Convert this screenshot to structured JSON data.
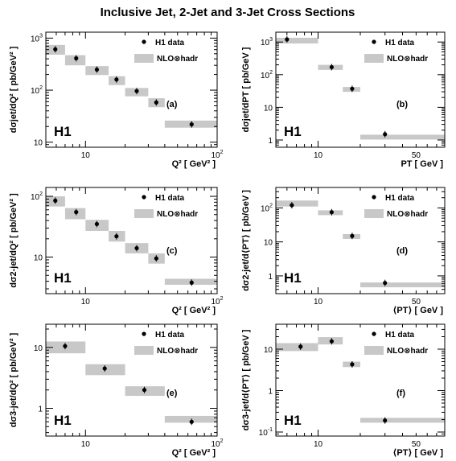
{
  "figure": {
    "title": "Inclusive Jet, 2-Jet and 3-Jet Cross Sections",
    "logo_text": "H1",
    "legend": {
      "data_label": "H1 data",
      "theory_label": "NLO⊗hadr"
    },
    "colors": {
      "theory_band": "#c8c8c8",
      "marker": "#000000",
      "axis": "#000000"
    }
  },
  "chart_data": [
    {
      "id": "a",
      "type": "scatter",
      "panel_label": "(a)",
      "xlabel": "Q² [ GeV² ]",
      "ylabel": "dσjet/dQ² [ pb/GeV² ]",
      "xscale": "log",
      "yscale": "log",
      "xlim": [
        5,
        100
      ],
      "ylim": [
        8,
        1300
      ],
      "xticks": [
        {
          "v": 10,
          "t": "10"
        },
        {
          "v": 100,
          "t": "10",
          "sup": "2"
        }
      ],
      "yticks": [
        {
          "v": 10,
          "t": "10"
        },
        {
          "v": 100,
          "t": "10",
          "sup": "2"
        },
        {
          "v": 1000,
          "t": "10",
          "sup": "3"
        }
      ],
      "has_legend": true,
      "series": [
        {
          "role": "data",
          "name": "H1 data",
          "x": [
            5.9,
            8.5,
            12.2,
            17.2,
            24.5,
            34.5,
            64
          ],
          "y": [
            610,
            410,
            248,
            160,
            96,
            58,
            22
          ]
        },
        {
          "role": "theory",
          "name": "NLO⊗hadr",
          "bins": [
            [
              5,
              7
            ],
            [
              7,
              10
            ],
            [
              10,
              15
            ],
            [
              15,
              20
            ],
            [
              20,
              30
            ],
            [
              30,
              40
            ],
            [
              40,
              100
            ]
          ],
          "lo": [
            480,
            300,
            195,
            125,
            76,
            47,
            19
          ],
          "hi": [
            740,
            470,
            290,
            185,
            110,
            70,
            26
          ]
        }
      ]
    },
    {
      "id": "b",
      "type": "scatter",
      "panel_label": "(b)",
      "xlabel": "PT [ GeV ]",
      "ylabel": "dσjet/dPT [ pb/GeV ]",
      "xscale": "log",
      "yscale": "log",
      "xlim": [
        5,
        80
      ],
      "ylim": [
        0.6,
        2000
      ],
      "xticks": [
        {
          "v": 10,
          "t": "10"
        },
        {
          "v": 50,
          "t": "50"
        }
      ],
      "yticks": [
        {
          "v": 1,
          "t": "1"
        },
        {
          "v": 10,
          "t": "10"
        },
        {
          "v": 100,
          "t": "10",
          "sup": "2"
        },
        {
          "v": 1000,
          "t": "10",
          "sup": "3"
        }
      ],
      "has_legend": true,
      "series": [
        {
          "role": "data",
          "name": "H1 data",
          "x": [
            6,
            12.5,
            17.5,
            30
          ],
          "y": [
            1200,
            170,
            37,
            1.5
          ]
        },
        {
          "role": "theory",
          "name": "NLO⊗hadr",
          "bins": [
            [
              5,
              10
            ],
            [
              10,
              15
            ],
            [
              15,
              20
            ],
            [
              20,
              80
            ]
          ],
          "lo": [
            900,
            140,
            30,
            1.2
          ],
          "hi": [
            1350,
            200,
            42,
            1.45
          ]
        }
      ]
    },
    {
      "id": "c",
      "type": "scatter",
      "panel_label": "(c)",
      "xlabel": "Q² [ GeV² ]",
      "ylabel": "dσ2-jet/dQ² [ pb/GeV² ]",
      "xscale": "log",
      "yscale": "log",
      "xlim": [
        5,
        100
      ],
      "ylim": [
        2.5,
        140
      ],
      "xticks": [
        {
          "v": 10,
          "t": "10"
        },
        {
          "v": 100,
          "t": "10",
          "sup": "2"
        }
      ],
      "yticks": [
        {
          "v": 10,
          "t": "10"
        },
        {
          "v": 100,
          "t": "10",
          "sup": "2"
        }
      ],
      "has_legend": true,
      "series": [
        {
          "role": "data",
          "name": "H1 data",
          "x": [
            5.9,
            8.5,
            12.2,
            17.2,
            24.5,
            34.5,
            64
          ],
          "y": [
            85,
            55,
            35,
            22,
            14,
            9.5,
            3.8
          ]
        },
        {
          "role": "theory",
          "name": "NLO⊗hadr",
          "bins": [
            [
              5,
              7
            ],
            [
              7,
              10
            ],
            [
              10,
              15
            ],
            [
              15,
              20
            ],
            [
              20,
              30
            ],
            [
              30,
              40
            ],
            [
              40,
              100
            ]
          ],
          "lo": [
            68,
            42,
            27,
            18,
            11.5,
            7.8,
            3.5
          ],
          "hi": [
            100,
            64,
            41,
            27,
            17,
            11.5,
            4.4
          ]
        }
      ]
    },
    {
      "id": "d",
      "type": "scatter",
      "panel_label": "(d)",
      "xlabel": "⟨PT⟩ [ GeV ]",
      "ylabel": "dσ2-jet/d⟨PT⟩ [ pb/GeV ]",
      "xscale": "log",
      "yscale": "log",
      "xlim": [
        5,
        80
      ],
      "ylim": [
        0.3,
        400
      ],
      "xticks": [
        {
          "v": 10,
          "t": "10"
        },
        {
          "v": 50,
          "t": "50"
        }
      ],
      "yticks": [
        {
          "v": 1,
          "t": "1"
        },
        {
          "v": 10,
          "t": "10"
        },
        {
          "v": 100,
          "t": "10",
          "sup": "2"
        }
      ],
      "has_legend": true,
      "series": [
        {
          "role": "data",
          "name": "H1 data",
          "x": [
            6.5,
            12.5,
            17.5,
            30
          ],
          "y": [
            120,
            75,
            15,
            0.62
          ]
        },
        {
          "role": "theory",
          "name": "NLO⊗hadr",
          "bins": [
            [
              5,
              10
            ],
            [
              10,
              15
            ],
            [
              15,
              20
            ],
            [
              20,
              80
            ]
          ],
          "lo": [
            110,
            62,
            13,
            0.52
          ],
          "hi": [
            165,
            85,
            17,
            0.64
          ]
        }
      ]
    },
    {
      "id": "e",
      "type": "scatter",
      "panel_label": "(e)",
      "xlabel": "Q² [ GeV² ]",
      "ylabel": "dσ3-jet/dQ² [ pb/GeV² ]",
      "xscale": "log",
      "yscale": "log",
      "xlim": [
        5,
        100
      ],
      "ylim": [
        0.35,
        24
      ],
      "xticks": [
        {
          "v": 10,
          "t": "10"
        },
        {
          "v": 100,
          "t": "10",
          "sup": "2"
        }
      ],
      "yticks": [
        {
          "v": 1,
          "t": "1"
        },
        {
          "v": 10,
          "t": "10"
        }
      ],
      "has_legend": true,
      "series": [
        {
          "role": "data",
          "name": "H1 data",
          "x": [
            7,
            14,
            28,
            64
          ],
          "y": [
            10.5,
            4.5,
            2.0,
            0.6
          ]
        },
        {
          "role": "theory",
          "name": "NLO⊗hadr",
          "bins": [
            [
              5,
              10
            ],
            [
              10,
              20
            ],
            [
              20,
              40
            ],
            [
              40,
              100
            ]
          ],
          "lo": [
            8.0,
            3.5,
            1.6,
            0.58
          ],
          "hi": [
            12.5,
            5.3,
            2.3,
            0.75
          ]
        }
      ]
    },
    {
      "id": "f",
      "type": "scatter",
      "panel_label": "(f)",
      "xlabel": "⟨PT⟩ [ GeV ]",
      "ylabel": "dσ3-jet/d⟨PT⟩ [ pb/GeV ]",
      "xscale": "log",
      "yscale": "log",
      "xlim": [
        5,
        80
      ],
      "ylim": [
        0.08,
        40
      ],
      "xticks": [
        {
          "v": 10,
          "t": "10"
        },
        {
          "v": 50,
          "t": "50"
        }
      ],
      "yticks": [
        {
          "v": 0.1,
          "t": "10",
          "sup": "-1"
        },
        {
          "v": 1,
          "t": "1"
        },
        {
          "v": 10,
          "t": "10"
        }
      ],
      "has_legend": true,
      "series": [
        {
          "role": "data",
          "name": "H1 data",
          "x": [
            7.5,
            12.5,
            17.5,
            30
          ],
          "y": [
            11.5,
            15.5,
            4.3,
            0.19
          ]
        },
        {
          "role": "theory",
          "name": "NLO⊗hadr",
          "bins": [
            [
              5,
              10
            ],
            [
              10,
              15
            ],
            [
              15,
              20
            ],
            [
              20,
              80
            ]
          ],
          "lo": [
            9.0,
            13,
            3.7,
            0.17
          ],
          "hi": [
            14,
            19.5,
            5.0,
            0.22
          ]
        }
      ]
    }
  ]
}
